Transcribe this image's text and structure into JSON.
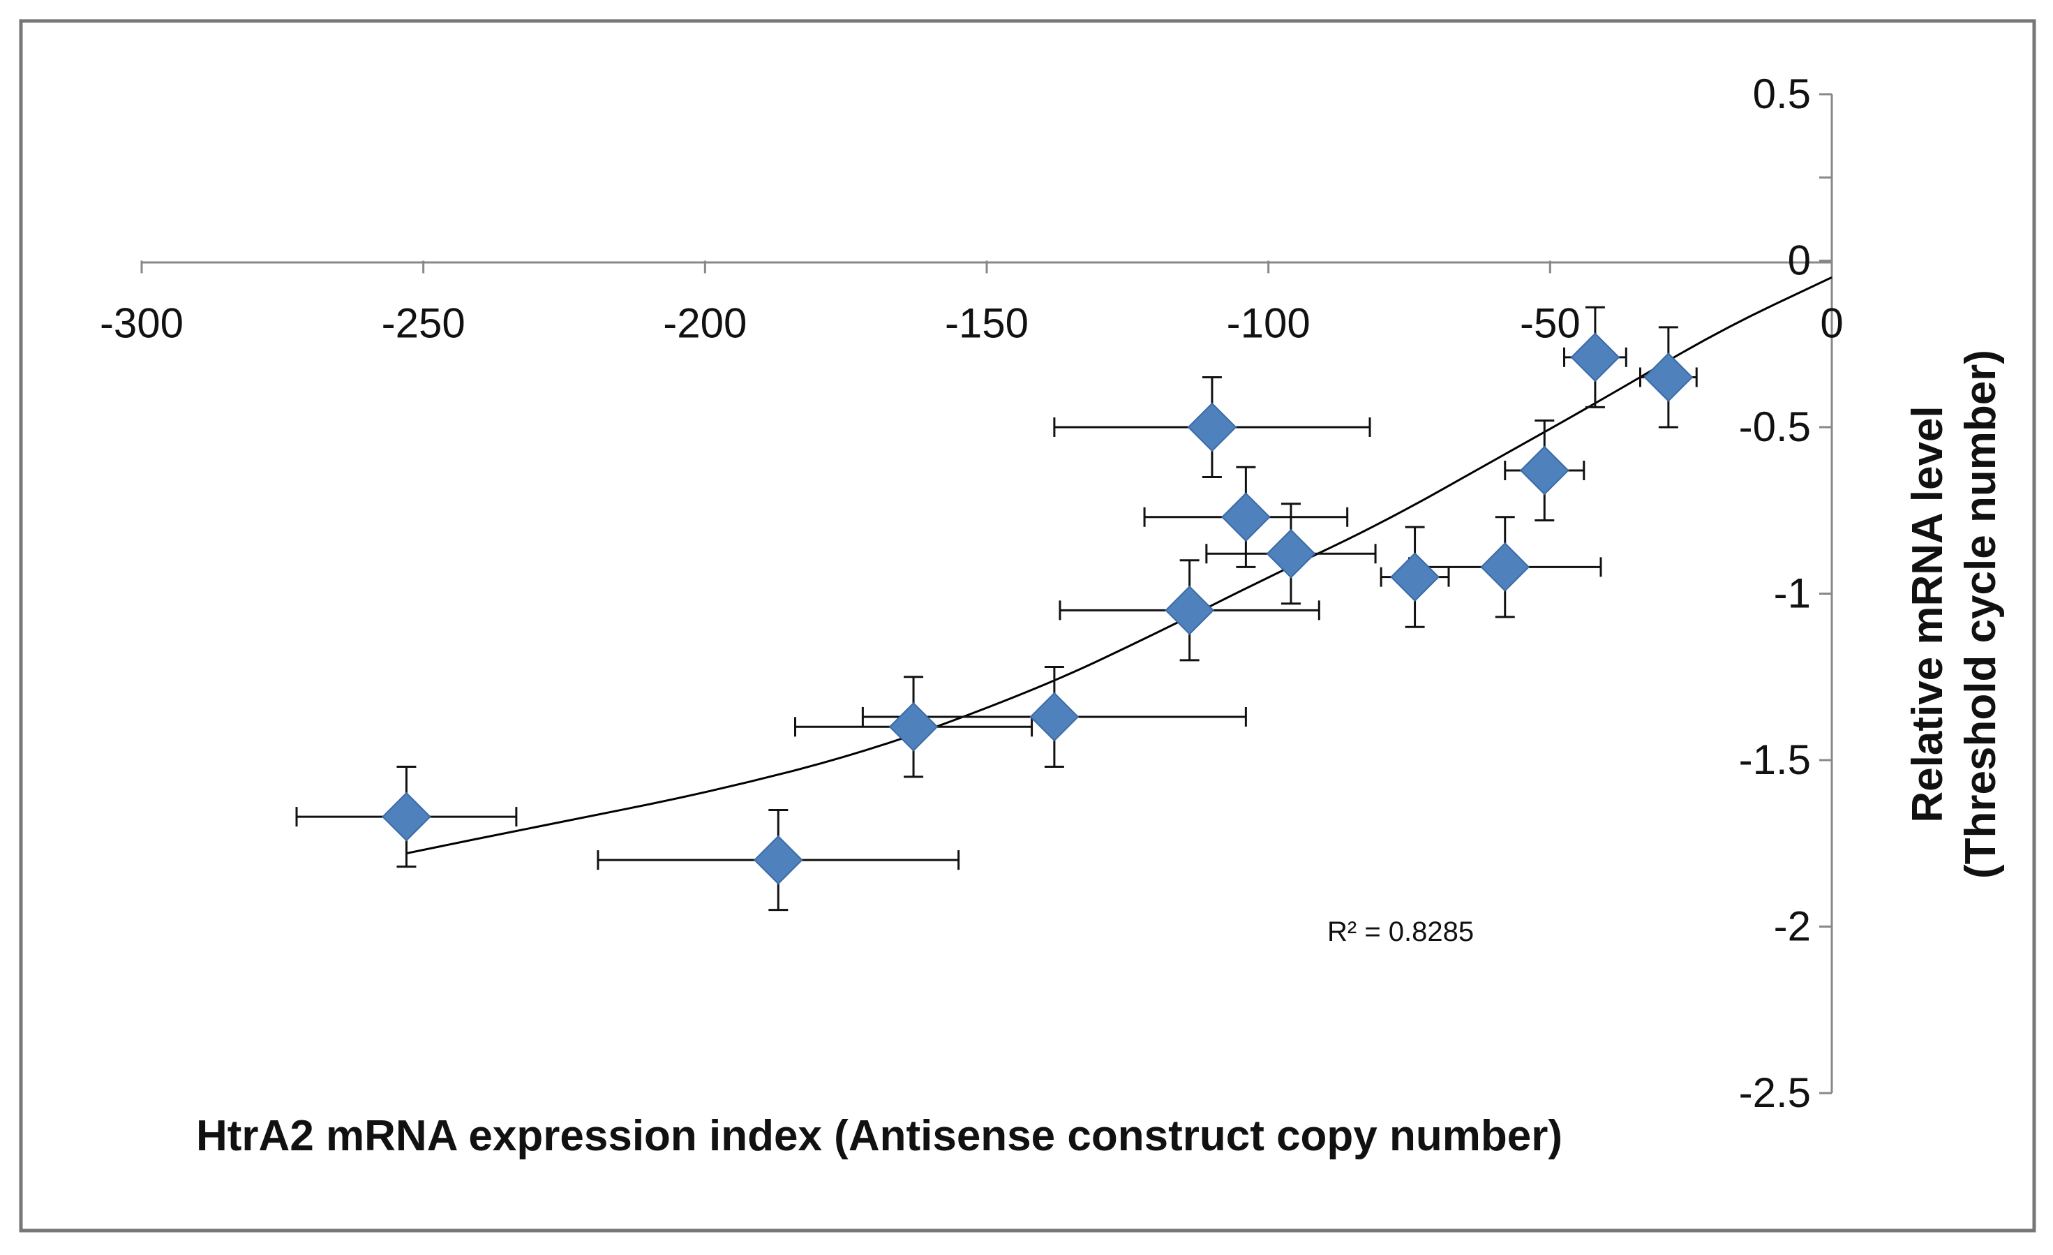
{
  "chart_data": {
    "type": "scatter",
    "title": "",
    "xlabel": "HtrA2 mRNA expression index (Antisense construct copy number)",
    "ylabel_lines": [
      "Relative mRNA level",
      "(Threshold  cycle number)"
    ],
    "xlim": [
      -300,
      0
    ],
    "ylim": [
      -2.5,
      0.5
    ],
    "xticks": [
      -300,
      -250,
      -200,
      -150,
      -100,
      -50,
      0
    ],
    "xtick_labels": [
      "-300",
      "-250",
      "-200",
      "-150",
      "-100",
      "-50",
      "0"
    ],
    "yticks": [
      0.5,
      0,
      -0.5,
      -1,
      -1.5,
      -2,
      -2.5
    ],
    "ytick_labels": [
      "0.5",
      "0",
      "-0.5",
      "-1",
      "-1.5",
      "-2",
      "-2.5"
    ],
    "series": [
      {
        "name": "samples",
        "marker": "diamond",
        "color": "#4F81BD",
        "points": [
          {
            "x": -253,
            "y": -1.67,
            "xerr": 19.5,
            "yerr": 0.15
          },
          {
            "x": -187,
            "y": -1.8,
            "xerr": 32,
            "yerr": 0.15
          },
          {
            "x": -163,
            "y": -1.4,
            "xerr": 21,
            "yerr": 0.15
          },
          {
            "x": -138,
            "y": -1.37,
            "xerr": 34,
            "yerr": 0.15
          },
          {
            "x": -114,
            "y": -1.05,
            "xerr": 23,
            "yerr": 0.15
          },
          {
            "x": -110,
            "y": -0.5,
            "xerr": 28,
            "yerr": 0.15
          },
          {
            "x": -104,
            "y": -0.77,
            "xerr": 18,
            "yerr": 0.15
          },
          {
            "x": -96,
            "y": -0.88,
            "xerr": 15,
            "yerr": 0.15
          },
          {
            "x": -74,
            "y": -0.95,
            "xerr": 6,
            "yerr": 0.15
          },
          {
            "x": -58,
            "y": -0.92,
            "xerr": 17,
            "yerr": 0.15
          },
          {
            "x": -51,
            "y": -0.63,
            "xerr": 7,
            "yerr": 0.15
          },
          {
            "x": -42,
            "y": -0.29,
            "xerr": 5.5,
            "yerr": 0.15
          },
          {
            "x": -29,
            "y": -0.35,
            "xerr": 5,
            "yerr": 0.15
          }
        ]
      }
    ],
    "trendline": {
      "type": "polynomial",
      "color": "#000000",
      "points": [
        {
          "x": -253,
          "y": -1.78
        },
        {
          "x": -230,
          "y": -1.7
        },
        {
          "x": -200,
          "y": -1.6
        },
        {
          "x": -170,
          "y": -1.47
        },
        {
          "x": -140,
          "y": -1.28
        },
        {
          "x": -120,
          "y": -1.12
        },
        {
          "x": -100,
          "y": -0.95
        },
        {
          "x": -80,
          "y": -0.79
        },
        {
          "x": -60,
          "y": -0.6
        },
        {
          "x": -40,
          "y": -0.41
        },
        {
          "x": -20,
          "y": -0.21
        },
        {
          "x": 0,
          "y": -0.05
        }
      ]
    },
    "annotation": "R² = 0.8285",
    "grid": false,
    "legend": "none"
  }
}
